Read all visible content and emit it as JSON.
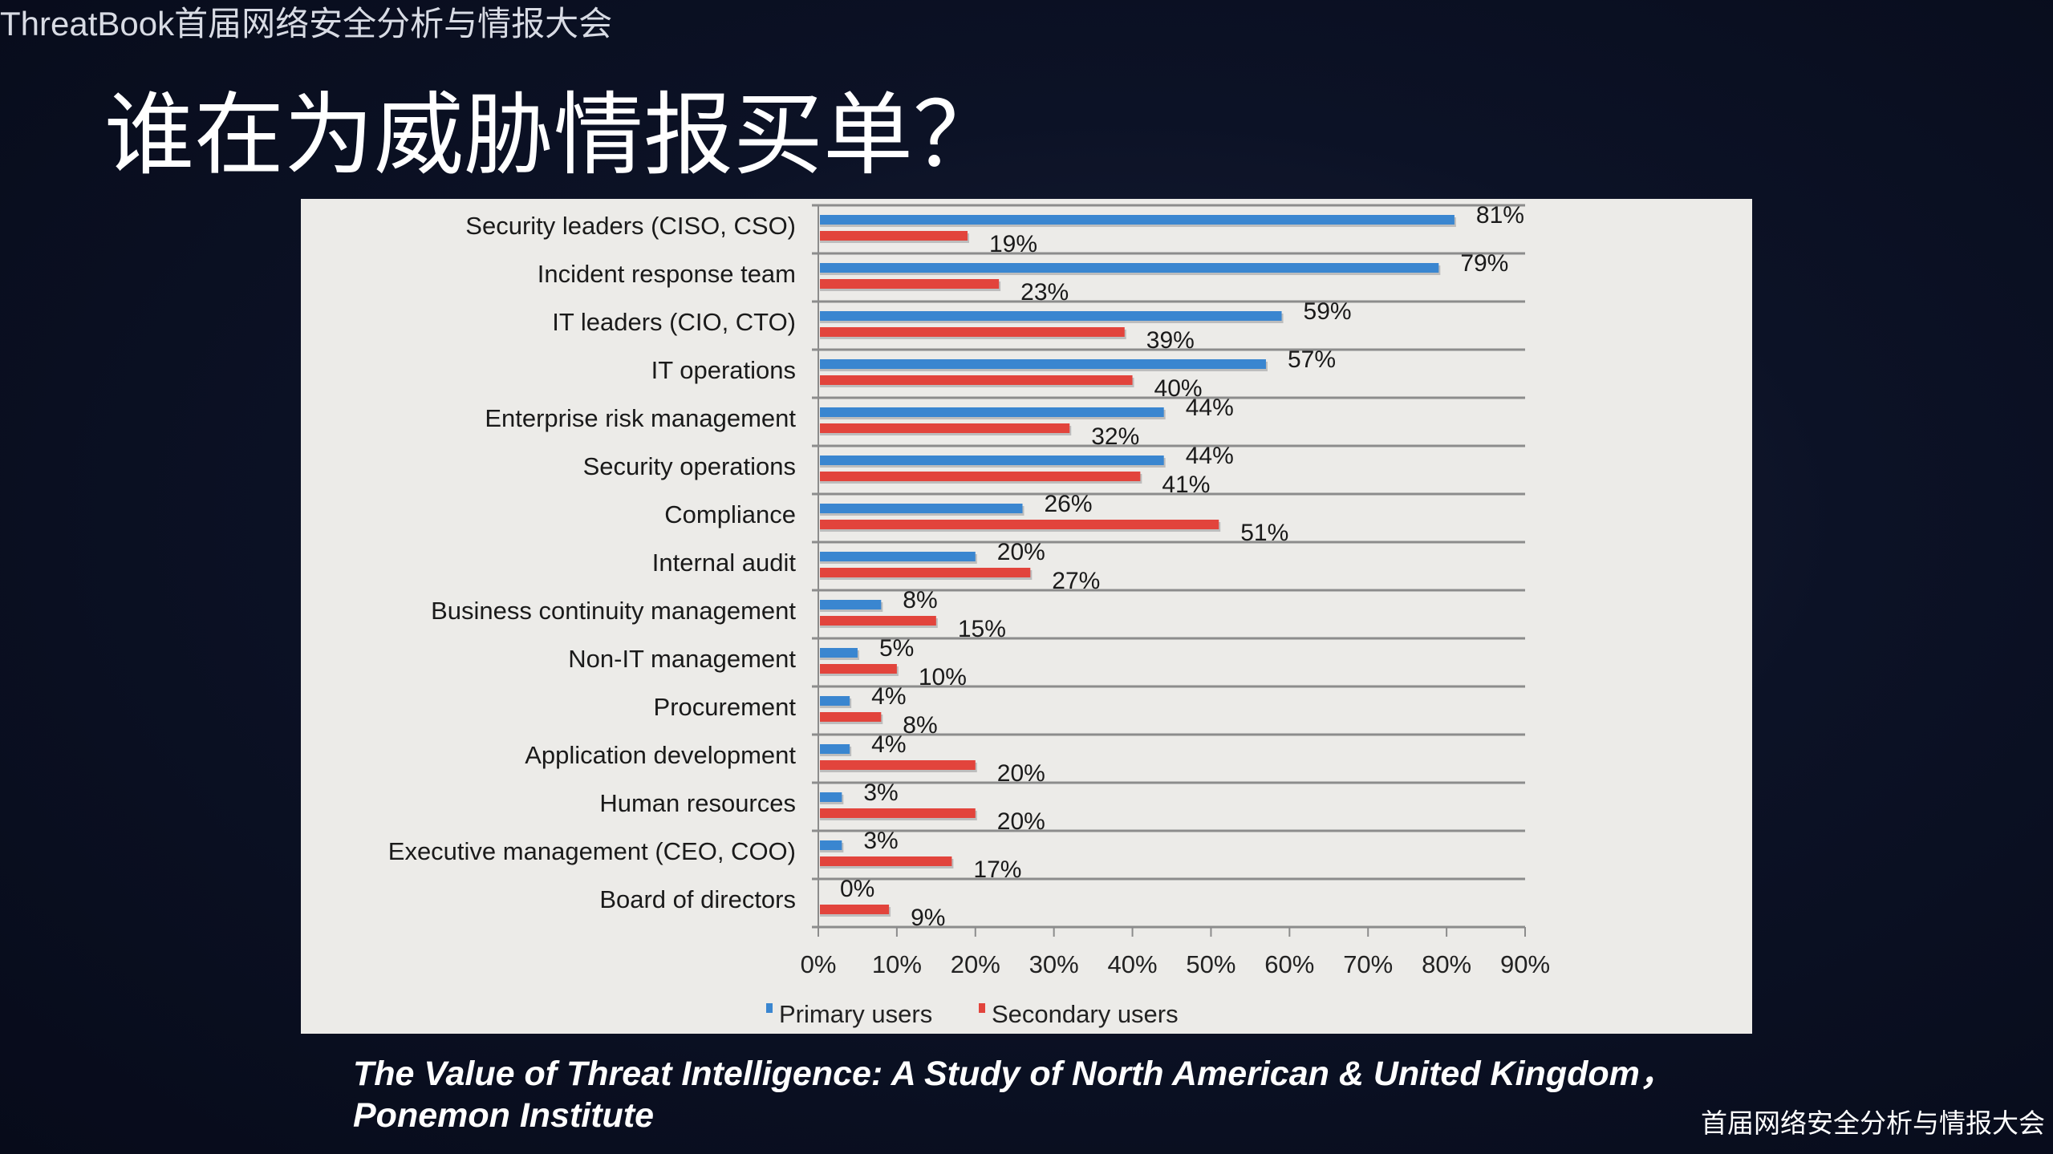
{
  "header": {
    "event_name": "ThreatBook首届网络安全分析与情报大会"
  },
  "slide": {
    "title": "谁在为威胁情报买单？"
  },
  "chart_data": {
    "type": "bar",
    "orientation": "horizontal",
    "categories": [
      "Security leaders (CISO, CSO)",
      "Incident response team",
      "IT leaders (CIO, CTO)",
      "IT operations",
      "Enterprise risk management",
      "Security operations",
      "Compliance",
      "Internal audit",
      "Business continuity management",
      "Non-IT management",
      "Procurement",
      "Application development",
      "Human resources",
      "Executive management (CEO, COO)",
      "Board of directors"
    ],
    "series": [
      {
        "name": "Primary users",
        "color": "#3a86d0",
        "values": [
          81,
          79,
          59,
          57,
          44,
          44,
          26,
          20,
          8,
          5,
          4,
          4,
          3,
          3,
          0
        ]
      },
      {
        "name": "Secondary users",
        "color": "#e2443c",
        "values": [
          19,
          23,
          39,
          40,
          32,
          41,
          51,
          27,
          15,
          10,
          8,
          20,
          20,
          17,
          9
        ]
      }
    ],
    "xlim": [
      0,
      90
    ],
    "x_ticks": [
      "0%",
      "10%",
      "20%",
      "30%",
      "40%",
      "50%",
      "60%",
      "70%",
      "80%",
      "90%"
    ],
    "value_suffix": "%",
    "grid": true,
    "legend": "bottom"
  },
  "citation": {
    "line1": "The Value of Threat Intelligence: A Study of North American & United Kingdom，",
    "line2": "Ponemon Institute"
  },
  "footer": {
    "text": "首届网络安全分析与情报大会"
  }
}
